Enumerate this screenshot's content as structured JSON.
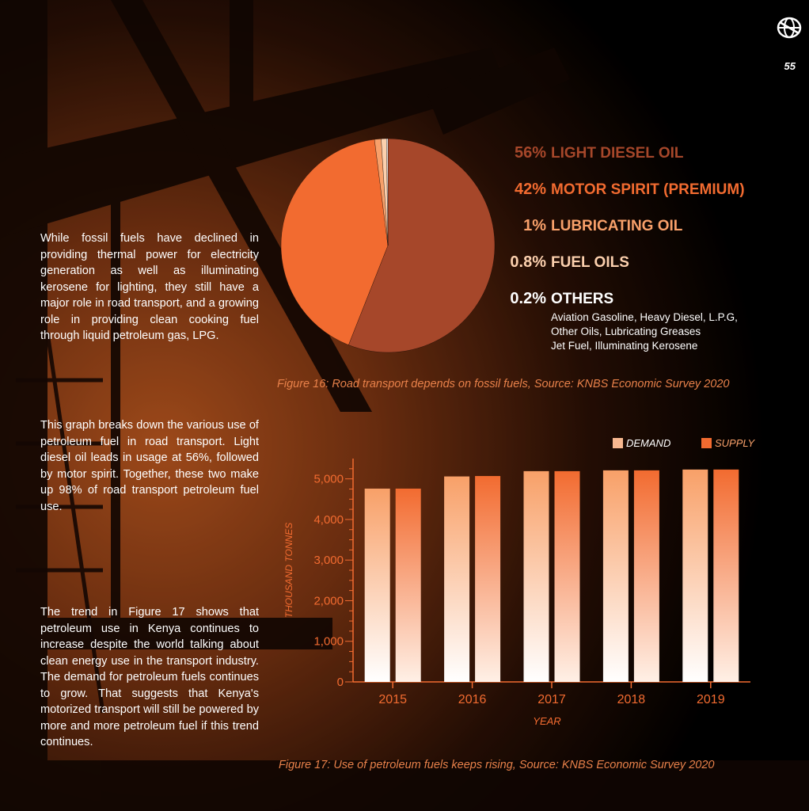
{
  "page_number": "55",
  "colors": {
    "accent": "#f26b30",
    "dark_orange": "#a6472a",
    "light_orange": "#f8a06a",
    "caption": "#e8814a"
  },
  "paragraphs": [
    "While fossil fuels have declined in providing thermal power for electricity generation as well as illuminating kerosene for lighting, they still have a major role in road transport, and a growing role in providing clean cooking fuel through liquid petroleum gas, LPG.",
    "This graph breaks down the various use of petroleum fuel in road transport.  Light diesel oil leads in usage at 56%, followed by motor spirit.  Together, these two make up 98% of road transport petroleum fuel use.",
    "The trend in Figure 17 shows that petroleum use in Kenya continues to increase despite the world talking about clean energy use in the transport industry. The demand for petroleum fuels continues to grow. That suggests that Kenya's motorized transport will still be powered by more and more petroleum fuel if this trend continues."
  ],
  "chart_data": [
    {
      "type": "pie",
      "slices": [
        {
          "pct_label": "56%",
          "label": "LIGHT DIESEL OIL",
          "value": 56,
          "color": "#a6472a"
        },
        {
          "pct_label": "42%",
          "label": "MOTOR SPIRIT (PREMIUM)",
          "value": 42,
          "color": "#f26b30"
        },
        {
          "pct_label": "1%",
          "label": "LUBRICATING OIL",
          "value": 1,
          "color": "#f8a06a"
        },
        {
          "pct_label": "0.8%",
          "label": "FUEL OILS",
          "value": 0.8,
          "color": "#fcd0ae"
        },
        {
          "pct_label": "0.2%",
          "label": "OTHERS",
          "value": 0.2,
          "color": "#ffffff"
        }
      ],
      "others_note": [
        "Aviation Gasoline, Heavy Diesel, L.P.G,",
        "Other Oils, Lubricating Greases",
        "Jet Fuel, Illuminating Kerosene"
      ],
      "caption": "Figure 16: Road transport depends on fossil fuels, Source: KNBS Economic Survey 2020"
    },
    {
      "type": "bar",
      "categories": [
        "2015",
        "2016",
        "2017",
        "2018",
        "2019"
      ],
      "series": [
        {
          "name": "DEMAND",
          "values": [
            4760,
            5060,
            5190,
            5210,
            5230
          ]
        },
        {
          "name": "SUPPLY",
          "values": [
            4760,
            5070,
            5190,
            5210,
            5230
          ]
        }
      ],
      "xlabel": "YEAR",
      "ylabel": "THOUSAND TONNES",
      "ylim": [
        0,
        5500
      ],
      "yticks": [
        0,
        1000,
        2000,
        3000,
        4000,
        5000
      ],
      "ytick_labels": [
        "0",
        "1,000",
        "2,000",
        "3,000",
        "4,000",
        "5,000"
      ],
      "legend": "top-right",
      "caption": "Figure 17: Use of petroleum fuels keeps rising, Source: KNBS Economic Survey 2020"
    }
  ]
}
